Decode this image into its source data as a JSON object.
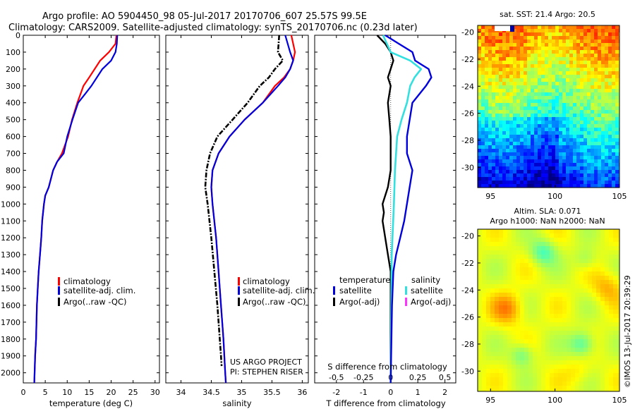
{
  "title": {
    "line1": "Argo profile: AO 5904450_98 05-Jul-2017 20170706_607 25.57S 99.5E",
    "line2": "Climatology: CARS2009. Satellite-adjusted climatology: synTS_20170706.nc (0.23d later)"
  },
  "colors": {
    "climatology": "#ff0000",
    "satellite": "#0000dd",
    "argo": "#000000",
    "satellite_salinity": "#33e0e0",
    "argo_salinity_adj": "#ff33ff",
    "zero_line": "#555555"
  },
  "notes": {
    "project": "US ARGO PROJECT",
    "pi": "PI: STEPHEN RISER",
    "copyright": "©IMOS 13-Jul-2017 20:39:29"
  },
  "chart_data": [
    {
      "type": "line",
      "name": "temperature-profile",
      "xlabel": "temperature (deg C)",
      "xlim": [
        0,
        31
      ],
      "ylim": [
        2060,
        0
      ],
      "xticks": [
        0,
        5,
        10,
        15,
        20,
        25,
        30
      ],
      "yticks": [
        0,
        100,
        200,
        300,
        400,
        500,
        600,
        700,
        800,
        900,
        1000,
        1100,
        1200,
        1300,
        1400,
        1500,
        1600,
        1700,
        1800,
        1900,
        2000
      ],
      "legend": [
        "climatology",
        "satellite-adj. clim.",
        "Argo(..raw -QC)"
      ],
      "series": [
        {
          "key": "climatology",
          "style": "solid",
          "x": [
            21.2,
            21.0,
            19.5,
            17.5,
            15.0,
            13.7,
            12.3,
            11.1,
            10.2,
            8.8,
            7.7,
            6.8,
            5.8,
            5.0,
            4.7,
            4.3,
            4.1,
            3.8,
            3.5,
            3.3,
            3.1,
            2.9,
            2.7,
            2.5
          ],
          "y": [
            0,
            50,
            100,
            150,
            250,
            300,
            400,
            500,
            600,
            700,
            750,
            800,
            900,
            950,
            1000,
            1100,
            1200,
            1300,
            1400,
            1500,
            1600,
            1800,
            1900,
            2060
          ]
        },
        {
          "key": "satellite",
          "style": "solid",
          "x": [
            21.4,
            21.3,
            21.0,
            20.0,
            18.0,
            15.5,
            14.0,
            12.5,
            11.2,
            10.0,
            9.2,
            7.7,
            6.8,
            5.8,
            5.0,
            4.7,
            4.3,
            4.1,
            3.8,
            3.5,
            3.3,
            3.1,
            2.9,
            2.7,
            2.5
          ],
          "y": [
            0,
            50,
            100,
            150,
            200,
            300,
            350,
            400,
            500,
            600,
            700,
            750,
            800,
            900,
            950,
            1000,
            1100,
            1200,
            1300,
            1400,
            1500,
            1600,
            1800,
            1900,
            2060
          ]
        }
      ]
    },
    {
      "type": "line",
      "name": "salinity-profile",
      "xlabel": "salinity",
      "xlim": [
        33.75,
        36.1
      ],
      "ylim": [
        2060,
        0
      ],
      "xticks": [
        34,
        34.5,
        35,
        35.5,
        36
      ],
      "legend": [
        "climatology",
        "satellite-adj. clim.",
        "Argo(..raw -QC)"
      ],
      "series": [
        {
          "key": "climatology",
          "style": "solid",
          "x": [
            35.82,
            35.88,
            35.85,
            35.8,
            35.7,
            35.55,
            35.35,
            35.05,
            34.8,
            34.62,
            34.52,
            34.5,
            34.52,
            34.58,
            34.62,
            34.66,
            34.7,
            34.73,
            34.74
          ],
          "y": [
            0,
            100,
            150,
            200,
            250,
            300,
            400,
            500,
            600,
            700,
            800,
            900,
            1000,
            1200,
            1400,
            1600,
            1800,
            2000,
            2060
          ]
        },
        {
          "key": "satellite",
          "style": "solid",
          "x": [
            35.72,
            35.8,
            35.85,
            35.8,
            35.72,
            35.6,
            35.35,
            35.05,
            34.8,
            34.62,
            34.52,
            34.5,
            34.52,
            34.58,
            34.62,
            34.66,
            34.7,
            34.73,
            34.74
          ],
          "y": [
            0,
            100,
            150,
            200,
            250,
            300,
            400,
            500,
            600,
            700,
            800,
            900,
            1000,
            1200,
            1400,
            1600,
            1800,
            2000,
            2060
          ]
        },
        {
          "key": "argo",
          "style": "dashdot",
          "x": [
            35.62,
            35.6,
            35.68,
            35.55,
            35.45,
            35.3,
            35.1,
            34.85,
            34.6,
            34.48,
            34.42,
            34.4,
            34.44,
            34.5,
            34.55,
            34.6,
            34.64,
            34.66,
            34.67
          ],
          "y": [
            0,
            100,
            150,
            200,
            250,
            300,
            400,
            500,
            600,
            700,
            800,
            900,
            1000,
            1200,
            1400,
            1600,
            1800,
            1900,
            1960
          ]
        }
      ],
      "notes": [
        "US ARGO PROJECT",
        "PI: STEPHEN RISER"
      ]
    },
    {
      "type": "line",
      "name": "difference-profile",
      "xlabel": "T difference from climatology",
      "x2label": "S difference from climatology",
      "xlim": [
        -2.8,
        2.4
      ],
      "ylim": [
        2060,
        0
      ],
      "xticks": [
        -2,
        -1,
        0,
        1,
        2
      ],
      "x2ticks": [
        -0.5,
        -0.25,
        0,
        0.25,
        0.5
      ],
      "legend_temperature": {
        "title": "temperature",
        "items": [
          "satellite",
          "Argo(-adj)"
        ]
      },
      "legend_salinity": {
        "title": "salinity",
        "items": [
          "satellite",
          "Argo(-adj)"
        ]
      },
      "series": [
        {
          "key": "t_satellite",
          "style": "solid",
          "x": [
            -0.2,
            0.3,
            0.8,
            0.9,
            1.2,
            1.4,
            1.5,
            1.3,
            0.8,
            0.6,
            0.6,
            0.8,
            0.7,
            0.5,
            0.35,
            0.2,
            0.1,
            0.05,
            0.0
          ],
          "y": [
            0,
            50,
            100,
            150,
            180,
            200,
            250,
            300,
            400,
            600,
            700,
            800,
            900,
            1100,
            1200,
            1300,
            1400,
            1600,
            2060
          ]
        },
        {
          "key": "t_argo",
          "style": "solid",
          "x": [
            -0.5,
            -0.2,
            0.0,
            0.1,
            0.0,
            -0.1,
            0.0,
            -0.1,
            -0.05,
            0.0,
            0.0,
            0.0,
            -0.1,
            -0.3,
            -0.25,
            -0.3,
            -0.25,
            -0.2,
            -0.1,
            0.0,
            0.0,
            0.0
          ],
          "y": [
            0,
            50,
            100,
            150,
            200,
            250,
            300,
            400,
            500,
            600,
            700,
            800,
            900,
            1000,
            1050,
            1100,
            1150,
            1200,
            1300,
            1400,
            1600,
            1960
          ]
        },
        {
          "key": "s_satellite",
          "style": "solid",
          "x": [
            -0.07,
            0.0,
            0.18,
            0.28,
            0.22,
            0.18,
            0.15,
            0.1,
            0.06,
            0.04,
            0.03,
            0.01,
            0.0
          ],
          "y": [
            0,
            100,
            150,
            200,
            250,
            300,
            400,
            500,
            600,
            800,
            1000,
            1300,
            2060
          ]
        }
      ]
    },
    {
      "type": "heatmap",
      "name": "sst-map",
      "title": "sat. SST: 21.4  Argo: 20.5",
      "xlim": [
        94,
        105
      ],
      "ylim": [
        -31.5,
        -19.5
      ],
      "xticks": [
        95,
        100,
        105
      ],
      "yticks": [
        -20,
        -22,
        -24,
        -26,
        -28,
        -30
      ],
      "colormap": "jet"
    },
    {
      "type": "heatmap",
      "name": "sla-map",
      "title_line1": "Altim. SLA: 0.071",
      "title_line2": "Argo h1000: NaN h2000: NaN",
      "xlim": [
        94,
        105
      ],
      "ylim": [
        -31.5,
        -19.5
      ],
      "xticks": [
        95,
        100,
        105
      ],
      "yticks": [
        -20,
        -22,
        -24,
        -26,
        -28,
        -30
      ],
      "colormap": "jet"
    }
  ]
}
